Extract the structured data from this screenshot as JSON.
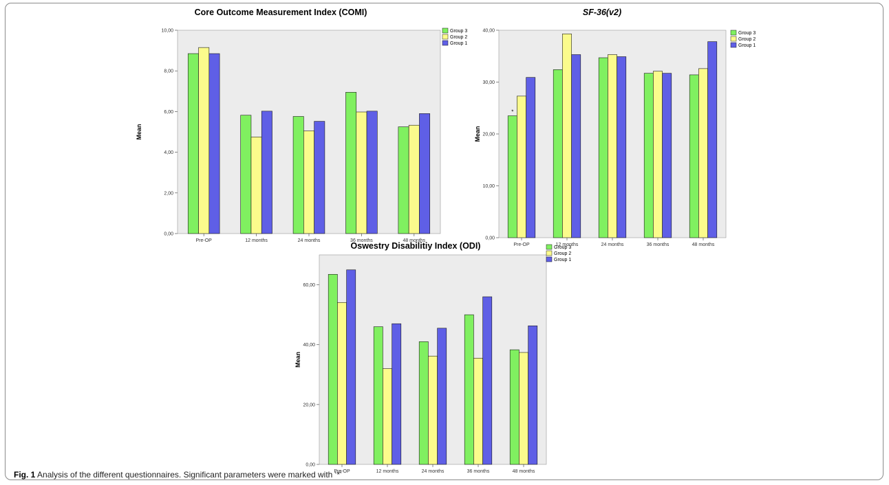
{
  "caption": {
    "label": "Fig. 1",
    "text": " Analysis of the different questionnaires. Significant parameters were marked with ‘*’"
  },
  "colors": {
    "Group 3": "#80f060",
    "Group 2": "#fbfb8c",
    "Group 1": "#5f5fe6",
    "plot_bg": "#ececec"
  },
  "chart_data": [
    {
      "type": "bar",
      "title": "Core Outcome Measurement Index (COMI)",
      "title_italic": false,
      "xlabel": "",
      "ylabel": "Mean",
      "categories": [
        "Pre-OP",
        "12 months",
        "24 months",
        "36 months",
        "48 months"
      ],
      "ylim": [
        0,
        10
      ],
      "yticks": [
        0,
        2,
        4,
        6,
        8,
        10
      ],
      "ytick_labels": [
        "0,00",
        "2,00",
        "4,00",
        "6,00",
        "8,00",
        "10,00"
      ],
      "legend": "top-right",
      "grid": false,
      "series": [
        {
          "name": "Group 3",
          "values": [
            8.85,
            5.82,
            5.76,
            6.95,
            5.25
          ]
        },
        {
          "name": "Group 2",
          "values": [
            9.15,
            4.75,
            5.05,
            5.98,
            5.33
          ]
        },
        {
          "name": "Group 1",
          "values": [
            8.85,
            6.02,
            5.52,
            6.02,
            5.9
          ]
        }
      ],
      "annotations": []
    },
    {
      "type": "bar",
      "title": "SF-36(v2)",
      "title_italic": true,
      "xlabel": "",
      "ylabel": "Mean",
      "categories": [
        "Pre-OP",
        "12 months",
        "24 months",
        "36 months",
        "48 months"
      ],
      "ylim": [
        0,
        40
      ],
      "yticks": [
        0,
        10,
        20,
        30,
        40
      ],
      "ytick_labels": [
        "0,00",
        "10,00",
        "20,00",
        "30,00",
        "40,00"
      ],
      "legend": "top-right",
      "grid": false,
      "series": [
        {
          "name": "Group 3",
          "values": [
            23.5,
            32.4,
            34.7,
            31.7,
            31.4
          ]
        },
        {
          "name": "Group 2",
          "values": [
            27.3,
            39.3,
            35.3,
            32.1,
            32.6
          ]
        },
        {
          "name": "Group 1",
          "values": [
            30.9,
            35.3,
            34.9,
            31.7,
            37.8
          ]
        }
      ],
      "annotations": [
        {
          "text": "*",
          "category": "Pre-OP",
          "series": "Group 3"
        }
      ]
    },
    {
      "type": "bar",
      "title": "Oswestry Disabilitiy Index (ODI)",
      "title_italic": false,
      "xlabel": "",
      "ylabel": "Mean",
      "categories": [
        "Pre-OP",
        "12 months",
        "24 months",
        "36 months",
        "48 months"
      ],
      "ylim": [
        0,
        70
      ],
      "yticks": [
        0,
        20,
        40,
        60
      ],
      "ytick_labels": [
        "0,00",
        "20,00",
        "40,00",
        "60,00"
      ],
      "legend": "top-right",
      "grid": false,
      "series": [
        {
          "name": "Group 3",
          "values": [
            63.5,
            46.0,
            41.0,
            50.0,
            38.3
          ]
        },
        {
          "name": "Group 2",
          "values": [
            54.1,
            32.0,
            36.2,
            35.5,
            37.4
          ]
        },
        {
          "name": "Group 1",
          "values": [
            65.0,
            47.0,
            45.5,
            56.0,
            46.3
          ]
        }
      ],
      "annotations": []
    }
  ]
}
